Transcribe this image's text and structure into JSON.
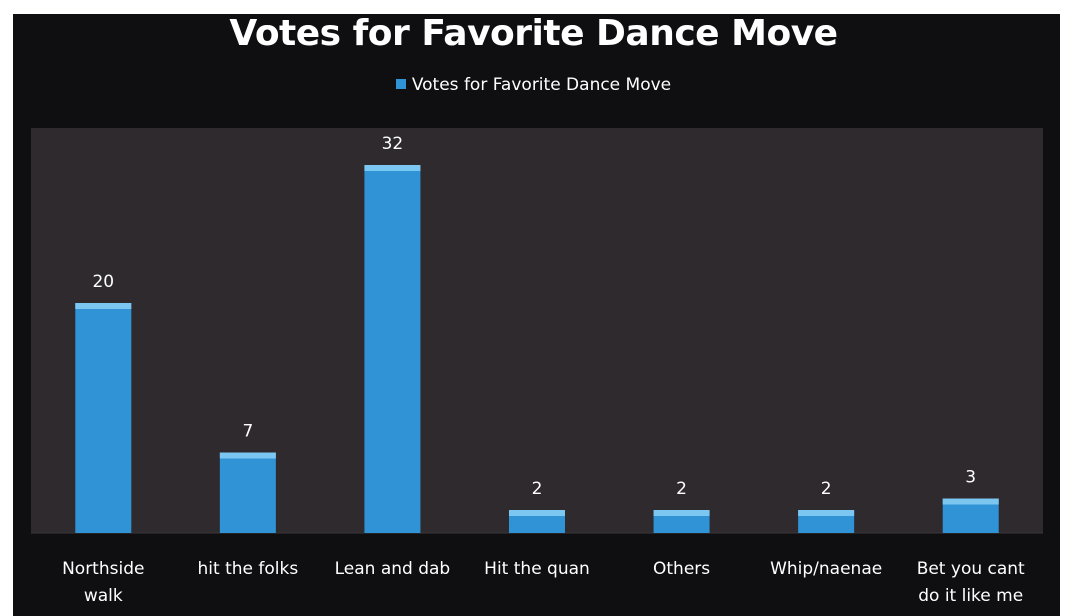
{
  "chart_data": {
    "type": "bar",
    "title": "Votes for Favorite Dance Move",
    "legend": {
      "entries": [
        "Votes for Favorite Dance Move"
      ],
      "placement": "top"
    },
    "categories": [
      [
        "Northside",
        "walk"
      ],
      [
        "hit the folks"
      ],
      [
        "Lean and dab"
      ],
      [
        "Hit the quan"
      ],
      [
        "Others"
      ],
      [
        "Whip/naenae"
      ],
      [
        "Bet you cant",
        "do it like me"
      ]
    ],
    "series": [
      {
        "name": "Votes for Favorite Dance Move",
        "values": [
          20,
          7,
          32,
          2,
          2,
          2,
          3
        ]
      }
    ],
    "data_labels": [
      "20",
      "7",
      "32",
      "2",
      "2",
      "2",
      "3"
    ],
    "ylim": [
      0,
      32
    ],
    "grid": false,
    "colors": {
      "bar": "#2f93d6",
      "bar_top": "#7cc7f2",
      "plot_background": "#2e2a2e",
      "outer_background": "#0f0f12",
      "text": "#ffffff"
    }
  }
}
